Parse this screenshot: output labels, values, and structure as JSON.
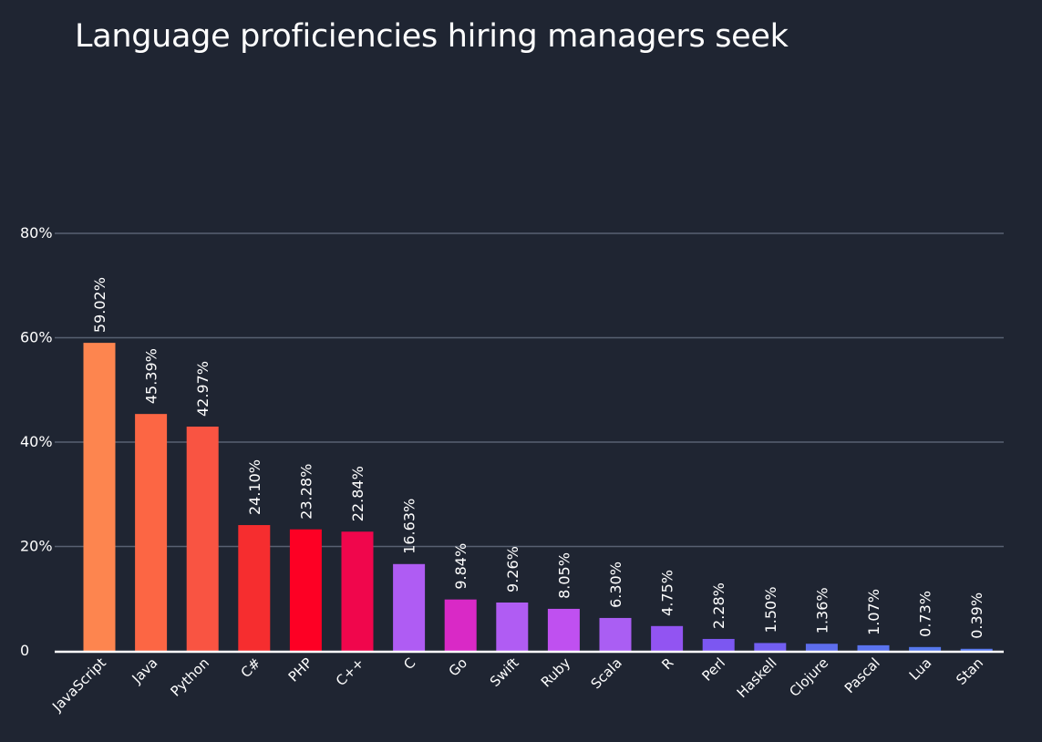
{
  "chart_data": {
    "type": "bar",
    "title": "Language proficiencies hiring managers seek",
    "xlabel": "",
    "ylabel": "",
    "ylim": [
      0,
      80
    ],
    "yticks": [
      0,
      20,
      40,
      60,
      80
    ],
    "ytick_labels": [
      "0",
      "20%",
      "40%",
      "60%",
      "80%"
    ],
    "grid": true,
    "legend": "none",
    "categories": [
      "JavaScript",
      "Java",
      "Python",
      "C#",
      "PHP",
      "C++",
      "C",
      "Go",
      "Swift",
      "Ruby",
      "Scala",
      "R",
      "Perl",
      "Haskell",
      "Clojure",
      "Pascal",
      "Lua",
      "Stan"
    ],
    "values": [
      59.02,
      45.39,
      42.97,
      24.1,
      23.28,
      22.84,
      16.63,
      9.84,
      9.26,
      8.05,
      6.3,
      4.75,
      2.28,
      1.5,
      1.36,
      1.07,
      0.73,
      0.39
    ],
    "value_labels": [
      "59.02%",
      "45.39%",
      "42.97%",
      "24.10%",
      "23.28%",
      "22.84%",
      "16.63%",
      "9.84%",
      "9.26%",
      "8.05%",
      "6.30%",
      "4.75%",
      "2.28%",
      "1.50%",
      "1.36%",
      "1.07%",
      "0.73%",
      "0.39%"
    ],
    "colors": [
      "#fd854f",
      "#fc6644",
      "#f95442",
      "#f62d2f",
      "#fd0024",
      "#f0064c",
      "#af5cf3",
      "#d929c6",
      "#b05cf3",
      "#bf50f0",
      "#aa5ef3",
      "#9254f2",
      "#7c57f1",
      "#725ef1",
      "#5d6ded",
      "#5a73ee",
      "#5678ed",
      "#5a7af0"
    ]
  }
}
